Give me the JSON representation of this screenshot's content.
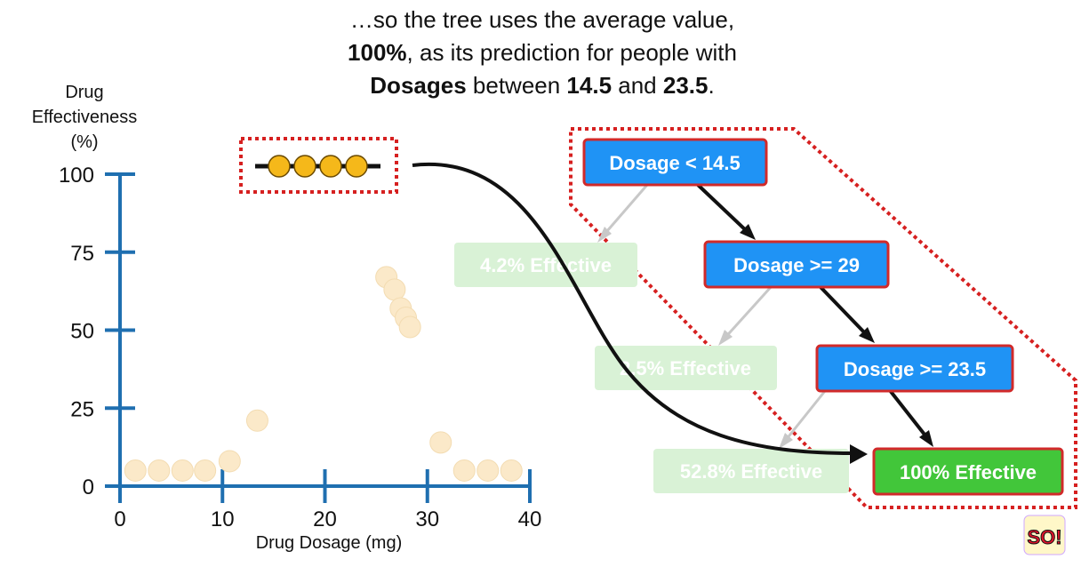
{
  "caption": {
    "line1": "…so the tree uses the average value,",
    "line2_bold": "100%",
    "line2_rest": ", as its prediction for people with",
    "line3_bold1": "Dosages",
    "line3_mid": " between ",
    "line3_bold2": "14.5",
    "line3_and": " and ",
    "line3_bold3": "23.5",
    "line3_end": "."
  },
  "axes": {
    "ylabel_line1": "Drug",
    "ylabel_line2": "Effectiveness",
    "ylabel_line3": "(%)",
    "xlabel": "Drug Dosage (mg)",
    "y_ticks": [
      "0",
      "25",
      "50",
      "75",
      "100"
    ],
    "x_ticks": [
      "0",
      "10",
      "20",
      "30",
      "40"
    ],
    "xlim": [
      0,
      40
    ],
    "ylim": [
      0,
      100
    ]
  },
  "chart_data": {
    "type": "scatter",
    "x": [
      1.5,
      3.8,
      6.1,
      8.3,
      10.7,
      13.4,
      26.0,
      26.8,
      27.4,
      27.9,
      28.3,
      31.3,
      33.6,
      35.9,
      38.2
    ],
    "y": [
      3,
      3,
      3,
      3,
      6,
      19,
      65,
      61,
      55,
      52,
      49,
      12,
      3,
      3,
      3
    ],
    "highlight_points_y": [
      100,
      100,
      100,
      100
    ],
    "xlim": [
      0,
      40
    ],
    "ylim": [
      0,
      100
    ]
  },
  "tree": {
    "root": "Dosage < 14.5",
    "node2": "Dosage >= 29",
    "node3": "Dosage >= 23.5",
    "leaf1": "4.2% Effective",
    "leaf2": "2.5% Effective",
    "leaf3": "52.8% Effective",
    "leaf4": "100% Effective"
  },
  "colors": {
    "axis": "#1f6fb0",
    "point_faded": "#fbe9c9",
    "point_highlight": "#f5b81a",
    "node_blue": "#1f93f5",
    "node_border": "#d12a2a",
    "leaf_green": "#42c63a",
    "leaf_faded": "#d9f2d6",
    "dotted_red": "#d62020"
  },
  "logo": {
    "text": "SO!"
  }
}
